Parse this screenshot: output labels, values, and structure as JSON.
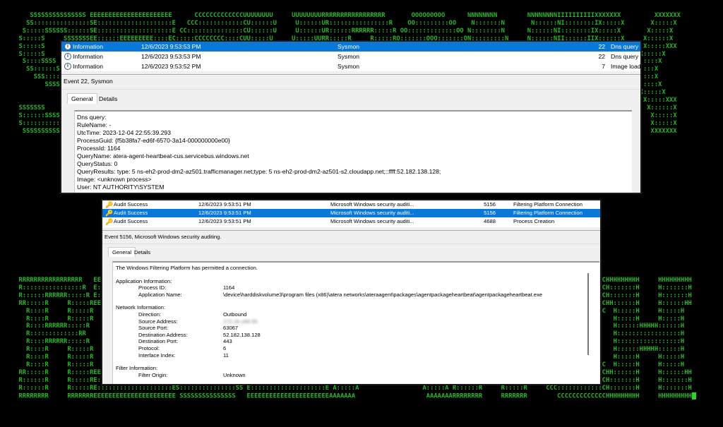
{
  "banner_top": [
    "        SSSSSSSSSSSSSSS EEEEEEEEEEEEEEEEEEEEEE      CCCCCCCCCCCCCUUUUUUUU     UUUUUUUURRRRRRRRRRRRRRRRR       OOOOOOOOO      NNNNNNNN        NNNNNNNNIIIIIIIIIIXXXXXXX         XXXXXXX",
    "       SS:::::::::::::::SE::::::::::::::::::::E   CCC::::::::::::CU::::::U     U::::::UR::::::::::::::::R    OO:::::::::OO    N:::::::N       N::::::NI::::::::IX:::::X       X:::::X",
    "      S:::::SSSSSS::::::SE::::::::::::::::::::E CC:::::::::::::::CU::::::U     U::::::UR::::::RRRRRR:::::R OO:::::::::::::OO N::::::::N      N::::::NI::::::::IX:::::X       X:::::X",
    "     S:::::S     SSSSSSSEE::::::EEEEEEEEE::::EC:::::CCCCCCCC::::CUU:::::U     U:::::UURR:::::R     R:::::RO:::::::OOO:::::::ON:::::::::N     N::::::NII::::::IIX::::::X     X::::::X",
    "     S:::::S              E:::::E       EEEEEEC:::::C       CCCCCC U:::::U     U:::::U   R::::R     R:::::RO::::::O   O::::::ON::::::::::N    N::::::N  I::::I  XXX:::::X   X:::::XXX",
    "     S:::::S              E:::::E            C:::::C               U:::::D     D:::::U   R::::R     R:::::RO:::::O     O:::::ON:::::::::::N   N::::::N  I::::I     X:::::X X:::::X",
    "      S::::SSSS           E::::::EEEEEEEEEE  C:::::C               U:::::D     D:::::U   R::::RRRRRR:::::R O:::::O     O:::::ON:::::::N::::N  N::::::N  I::::I      X:::::X:::::X",
    "       SS::::::SSSSS      E:::::::::::::::E  C:::::C               U:::::D     D:::::U   R:::::::::::::RR  O:::::O     O:::::ON::::::N N::::N N::::::N  I::::I       X:::::::::X",
    "         SSS::::::::SS    E:::::::::::::::E  C:::::C               U:::::D     D:::::U   R::::RRRRRR:::::R O:::::O     O:::::ON::::::N  N::::N:::::::N  I::::I       X:::::::::X",
    "            SSSSSS::::S   E::::::EEEEEEEEEE  C:::::C               U:::::D     D:::::U   R::::R     R:::::RO:::::O     O:::::ON::::::N   N:::::::::::N  I::::I      X:::::X:::::X",
    "                 S:::::S  E:::::E            C:::::C               U:::::D     D:::::U   R::::R     R:::::RO:::::O     O:::::ON::::::N    N::::::::::N  I::::I     X:::::X X:::::X",
    "                 S:::::S  E:::::E       EEEEEEC:::::C       CCCCCC U::::::U   U::::::U   R::::R     R:::::RO::::::O   O::::::ON::::::N     N:::::::::N  I::::I  XXX:::::X   X:::::XXX",
    "     SSSSSSS     S:::::SEE::::::EEEEEEEE:::::E C:::::CCCCCCCC::::C U:::::::UUU:::::::U RR:::::R     R:::::RO:::::::OOO:::::::ON::::::N      N::::::::NII::::::IIX::::::X     X::::::X",
    "     S::::::SSSSSS:::::SE::::::::::::::::::::E  CC:::::::::::::::C  UU:::::::::::::UU  R::::::R     R:::::R OO:::::::::::::OO N::::::N       N:::::::NI::::::::IX:::::X       X:::::X",
    "     S:::::::::::::::SS E::::::::::::::::::::E    CCC::::::::::::C    UU:::::::::UU    R::::::R     R:::::R   OO:::::::::OO   N::::::N        N::::::NI::::::::IX:::::X       X:::::X",
    "      SSSSSSSSSSSSSSS   EEEEEEEEEEEEEEEEEEEEEE       CCCCCCCCCCCCC      UUUUUUUUU      RRRRRRRR     RRRRRRR     OOOOOOOOO     NNNNNNNN         NNNNNNNIIIIIIIIIIXXXXXXX       XXXXXXX"
  ],
  "banner_bottom": [
    "     RRRRRRRRRRRRRRRRR   EEEEEEEEEEEEEEEEEEEEEE   SSSSSSSSSSSSSSS EEEEEEEEEEEEEEEEEEEEEE               AAA               RRRRRRRRRRRRRRRRR           CCCCCCCCCCCCCHHHHHHHHH     HHHHHHHHH",
    "     R::::::::::::::::R  E::::::::::::::::::::E SS:::::::::::::::SE::::::::::::::::::::E              A:::A              R::::::::::::::::R       CCC::::::::::::CH:::::::H     H:::::::H",
    "     R::::::RRRRRR:::::R E::::::::::::::::::::ES:::::SSSSSS::::::SE::::::::::::::::::::E             A:::::A             R::::::RRRRRR:::::R    CC:::::::::::::::CH:::::::H     H:::::::H",
    "     RR:::::R     R:::::REE::::::EEEEEEEEE::::ES:::::S     SSSSSSSEE::::::EEEEEEEEE::::E            A:::::::A            RR:::::R     R:::::R  C:::::CCCCCCCC::::CHH::::::H     H::::::HH",
    "       R::::R     R:::::R  E:::::E       EEEEEES:::::S              E:::::E       EEEEEE           A:::::::::A             R::::R     R:::::R C:::::C       CCCCCC  H:::::H     H:::::H",
    "       R::::R     R:::::R  E:::::E             S:::::S              E:::::E                       A:::::A:::::A            R::::R     R:::::RC:::::C                H:::::H     H:::::H",
    "       R::::RRRRRR:::::R   E::::::EEEEEEEEEE    S::::SSSS           E::::::EEEEEEEEEE            A:::::A A:::::A           R::::RRRRRR:::::R C:::::C                H::::::HHHHH::::::H",
    "       R:::::::::::::RR    E:::::::::::::::E     SS::::::SSSSS      E:::::::::::::::E           A:::::A   A:::::A          R:::::::::::::RR  C:::::C                H:::::::::::::::::H",
    "       R::::RRRRRR:::::R   E:::::::::::::::E       SSS::::::::SS    E:::::::::::::::E          A:::::A     A:::::A         R::::RRRRRR:::::R C:::::C                H:::::::::::::::::H",
    "       R::::R     R:::::R  E::::::EEEEEEEEEE          SSSSSS::::S   E::::::EEEEEEEEEE         A:::::AAAAAAAAA:::::A        R::::R     R:::::RC:::::C                H::::::HHHHH::::::H",
    "       R::::R     R:::::R  E:::::E                         S:::::S  E:::::E                  A:::::::::::::::::::::A       R::::R     R:::::RC:::::C                H:::::H     H:::::H",
    "       R::::R     R:::::R  E:::::E       EEEEEE            S:::::S  E:::::E       EEEEEE    A:::::AAAAAAAAAAAAA:::::A      R::::R     R:::::R C:::::C       CCCCCC  H:::::H     H:::::H",
    "     RR:::::R     R:::::REE::::::EEEEEEEE:::::ESSSSSSS     S:::::SEE::::::EEEEEEEE:::::E   A:::::A             A:::::A   RR:::::R     R:::::R  C:::::CCCCCCCC::::CHH::::::H     H::::::HH",
    "     R::::::R     R:::::RE::::::::::::::::::::ES::::::SSSSSS:::::SE::::::::::::::::::::E  A:::::A               A:::::A  R::::::R     R:::::R   CC:::::::::::::::CH:::::::H     H:::::::H",
    "     R::::::R     R:::::RE::::::::::::::::::::ES:::::::::::::::SS E::::::::::::::::::::E A:::::A                 A:::::A R::::::R     R:::::R     CCC::::::::::::CH:::::::H     H:::::::H",
    "     RRRRRRRR     RRRRRRREEEEEEEEEEEEEEEEEEEEEE SSSSSSSSSSSSSSS   EEEEEEEEEEEEEEEEEEEEEEAAAAAAA                   AAAAAAARRRRRRRR     RRRRRRR        CCCCCCCCCCCCCHHHHHHHHH     HHHHHHHHH"
  ],
  "panel1": {
    "rows": [
      {
        "icon": "info-icon",
        "level": "Information",
        "date": "12/6/2023 9:53:53 PM",
        "source": "Sysmon",
        "id": "22",
        "task": "Dns query (rule: DnsQuery)",
        "selected": true
      },
      {
        "icon": "info-icon",
        "level": "Information",
        "date": "12/6/2023 9:53:53 PM",
        "source": "Sysmon",
        "id": "22",
        "task": "Dns query (rule: DnsQuery)",
        "selected": false
      },
      {
        "icon": "info-icon",
        "level": "Information",
        "date": "12/6/2023 9:53:52 PM",
        "source": "Sysmon",
        "id": "7",
        "task": "Image loaded (rule: ImageLoad)",
        "selected": false
      }
    ],
    "event_title": "Event 22, Sysmon",
    "tabs": [
      "General",
      "Details"
    ],
    "lines": [
      "Dns query:",
      "RuleName: -",
      "UtcTime: 2023-12-04 22:55:39.293",
      "ProcessGuid: {f5b38fa7-ed6f-6570-3a14-000000000e00}",
      "ProcessId: 1164",
      "QueryName: atera-agent-heartbeat-cus.servicebus.windows.net",
      "QueryStatus: 0",
      "QueryResults: type: 5 ns-eh2-prod-dm2-az501.trafficmanager.net;type: 5 ns-eh2-prod-dm2-az501-s2.cloudapp.net;::ffff:52.182.138.128;",
      "Image: <unknown process>",
      "User: NT AUTHORITY\\SYSTEM"
    ]
  },
  "panel2": {
    "rows": [
      {
        "icon": "key-icon",
        "level": "Audit Success",
        "date": "12/6/2023 9:53:51 PM",
        "source": "Microsoft Windows security auditi...",
        "id": "5156",
        "task": "Filtering Platform Connection",
        "selected": false
      },
      {
        "icon": "key-icon",
        "level": "Audit Success",
        "date": "12/6/2023 9:53:51 PM",
        "source": "Microsoft Windows security auditi...",
        "id": "5156",
        "task": "Filtering Platform Connection",
        "selected": true
      },
      {
        "icon": "key-icon",
        "level": "Audit Success",
        "date": "12/6/2023 9:53:51 PM",
        "source": "Microsoft Windows security auditi...",
        "id": "4688",
        "task": "Process Creation",
        "selected": false
      }
    ],
    "event_title": "Event 5156, Microsoft Windows security auditing.",
    "tabs": [
      "General",
      "Details"
    ],
    "intro": "The Windows Filtering Platform has permitted a connection.",
    "sections": [
      {
        "title": "Application Information:",
        "fields": [
          {
            "k": "Process ID:",
            "v": "1164"
          },
          {
            "k": "Application Name:",
            "v": "\\device\\harddiskvolume3\\program files (x86)\\atera networks\\ateraagent\\packages\\agentpackageheartbeat\\agentpackageheartbeat.exe"
          }
        ]
      },
      {
        "title": "Network Information:",
        "fields": [
          {
            "k": "Direction:",
            "v": "Outbound"
          },
          {
            "k": "Source Address:",
            "v": "172.16.166.55",
            "blurred": true
          },
          {
            "k": "Source Port:",
            "v": "63067"
          },
          {
            "k": "Destination Address:",
            "v": "52.182.138.128"
          },
          {
            "k": "Destination Port:",
            "v": "443"
          },
          {
            "k": "Protocol:",
            "v": "6"
          },
          {
            "k": "Interface Index:",
            "v": "11"
          }
        ]
      },
      {
        "title": "Filter Information:",
        "fields": [
          {
            "k": "Filter Origin:",
            "v": "Unknown"
          }
        ]
      }
    ]
  },
  "colors": {
    "banner_green": "#2bb52b",
    "selection_blue": "#0a78d7"
  }
}
